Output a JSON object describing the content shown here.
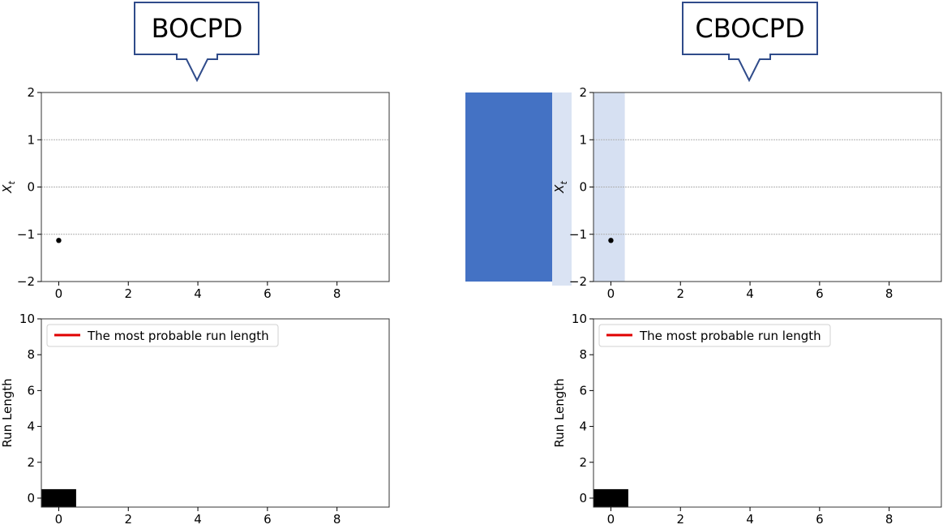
{
  "callouts": [
    {
      "label": "BOCPD"
    },
    {
      "label": "CBOCPD"
    }
  ],
  "colors": {
    "callout_border": "#2F4B8A",
    "shade_dark": "#4472C4",
    "shade_light": "#D6E0F2",
    "run_length_line": "#E00000",
    "grid": "#B0B0B0",
    "point": "#000000"
  },
  "chart_data": [
    {
      "id": "bocpd-top",
      "type": "scatter",
      "title": "",
      "xlabel": "",
      "ylabel": "X_t",
      "xlim": [
        -0.5,
        9.5
      ],
      "ylim": [
        -2,
        2
      ],
      "xticks": [
        0,
        2,
        4,
        6,
        8
      ],
      "yticks": [
        -2,
        -1,
        0,
        1,
        2
      ],
      "ytick_labels": [
        "−2",
        "−1",
        "0",
        "1",
        "2"
      ],
      "grid_y": true,
      "points": [
        {
          "x": 0,
          "y": -1.13
        }
      ]
    },
    {
      "id": "bocpd-bottom",
      "type": "heatmap",
      "title": "",
      "xlabel": "",
      "ylabel": "Run Length",
      "xlim": [
        -0.5,
        9.5
      ],
      "ylim": [
        -0.5,
        10
      ],
      "xticks": [
        0,
        2,
        4,
        6,
        8
      ],
      "yticks": [
        0,
        2,
        4,
        6,
        8,
        10
      ],
      "legend": {
        "position": "top-left",
        "entries": [
          "The most probable run length"
        ]
      },
      "cells": [
        {
          "x": 0,
          "y": 0,
          "value": 1.0
        }
      ]
    },
    {
      "id": "cbocpd-top",
      "type": "scatter",
      "title": "",
      "xlabel": "",
      "ylabel": "X_t",
      "xlim": [
        -0.5,
        9.5
      ],
      "ylim": [
        -2,
        2
      ],
      "xticks": [
        0,
        2,
        4,
        6,
        8
      ],
      "yticks": [
        -2,
        -1,
        0,
        1,
        2
      ],
      "ytick_labels": [
        "−2",
        "−1",
        "0",
        "1",
        "2"
      ],
      "grid_y": true,
      "points": [
        {
          "x": 0,
          "y": -1.13
        }
      ],
      "highlight_span": {
        "x0": -0.5,
        "x1": 0.4
      }
    },
    {
      "id": "cbocpd-bottom",
      "type": "heatmap",
      "title": "",
      "xlabel": "",
      "ylabel": "Run Length",
      "xlim": [
        -0.5,
        9.5
      ],
      "ylim": [
        -0.5,
        10
      ],
      "xticks": [
        0,
        2,
        4,
        6,
        8
      ],
      "yticks": [
        0,
        2,
        4,
        6,
        8,
        10
      ],
      "legend": {
        "position": "top-left",
        "entries": [
          "The most probable run length"
        ]
      },
      "cells": [
        {
          "x": 0,
          "y": 0,
          "value": 1.0
        }
      ]
    }
  ]
}
